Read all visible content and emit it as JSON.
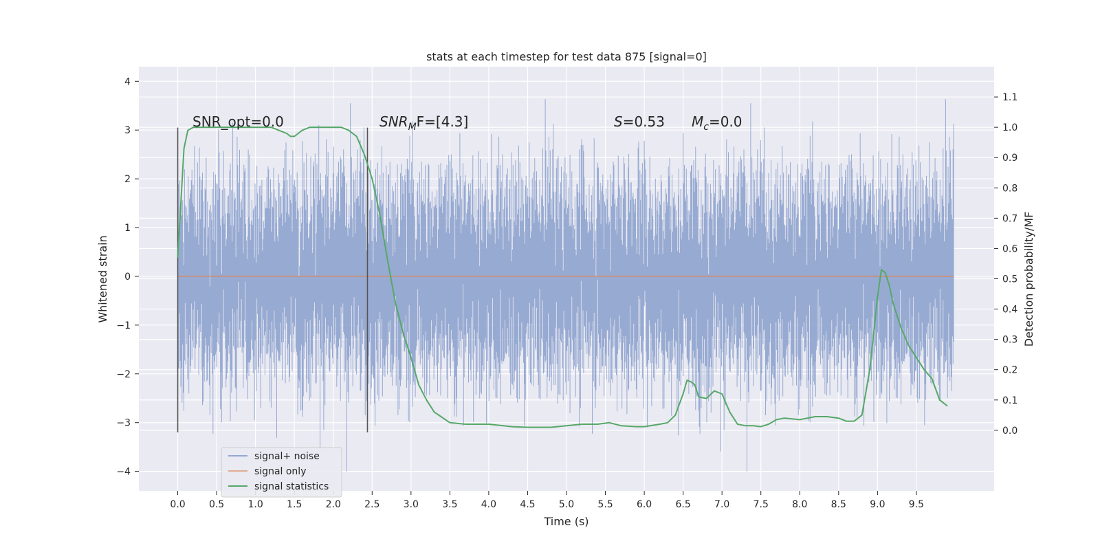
{
  "chart_data": {
    "type": "line",
    "title": "stats at each timestep for test data 875 [signal=0]",
    "xlabel": "Time (s)",
    "ylabel_left": "Whitened strain",
    "ylabel_right": "Detection probability/MF",
    "xlim": [
      -0.5,
      10.5
    ],
    "ylim_left": [
      -4.4,
      4.3
    ],
    "ylim_right": [
      -0.2,
      1.2
    ],
    "x_ticks": [
      "0.0",
      "0.5",
      "1.0",
      "1.5",
      "2.0",
      "2.5",
      "3.0",
      "3.5",
      "4.0",
      "4.5",
      "5.0",
      "5.5",
      "6.0",
      "6.5",
      "7.0",
      "7.5",
      "8.0",
      "8.5",
      "9.0",
      "9.5"
    ],
    "y_ticks_left": [
      "4",
      "3",
      "2",
      "1",
      "0",
      "−1",
      "−2",
      "−3",
      "−4"
    ],
    "y_ticks_right": [
      "1.1",
      "1.0",
      "0.9",
      "0.8",
      "0.7",
      "0.6",
      "0.5",
      "0.4",
      "0.3",
      "0.2",
      "0.1",
      "0.0"
    ],
    "grid": true,
    "legend_position": "lower-left",
    "annotations": {
      "snr_opt": "SNR_opt=0.0",
      "snr_mf_prefix": "SNR",
      "snr_mf_sub": "M",
      "snr_mf_suffix": "F=[4.3]",
      "s_var": "S",
      "s_val": "=0.53",
      "mc_var": "M",
      "mc_sub": "c",
      "mc_val": "=0.0"
    },
    "vertical_markers": [
      0.0,
      2.44
    ],
    "series": [
      {
        "name": "signal+ noise",
        "color": "#92a6d0",
        "description_range": [
          -4.0,
          3.9
        ],
        "x_range": [
          0.0,
          9.98
        ]
      },
      {
        "name": "signal only",
        "color": "#dd8452",
        "x": [
          0.0,
          9.98
        ],
        "y": [
          0.0,
          0.0
        ]
      },
      {
        "name": "signal statistics",
        "color": "#55a868",
        "x": [
          0.0,
          0.08,
          0.13,
          0.2,
          0.3,
          0.5,
          0.7,
          0.9,
          1.0,
          1.1,
          1.2,
          1.3,
          1.4,
          1.45,
          1.5,
          1.55,
          1.6,
          1.7,
          1.8,
          2.0,
          2.1,
          2.2,
          2.3,
          2.4,
          2.5,
          2.6,
          2.7,
          2.8,
          2.9,
          3.0,
          3.1,
          3.2,
          3.3,
          3.5,
          3.7,
          4.0,
          4.3,
          4.5,
          4.8,
          5.0,
          5.2,
          5.4,
          5.55,
          5.7,
          5.9,
          6.0,
          6.2,
          6.3,
          6.4,
          6.5,
          6.55,
          6.6,
          6.65,
          6.7,
          6.8,
          6.9,
          7.0,
          7.05,
          7.1,
          7.2,
          7.3,
          7.4,
          7.5,
          7.6,
          7.7,
          7.8,
          8.0,
          8.2,
          8.35,
          8.5,
          8.6,
          8.7,
          8.8,
          8.9,
          9.0,
          9.05,
          9.1,
          9.15,
          9.2,
          9.3,
          9.4,
          9.5,
          9.6,
          9.7,
          9.8,
          9.9
        ],
        "y": [
          0.57,
          0.93,
          0.99,
          1.0,
          1.0,
          1.0,
          1.0,
          1.0,
          1.0,
          1.0,
          1.0,
          0.99,
          0.98,
          0.97,
          0.97,
          0.98,
          0.99,
          1.0,
          1.0,
          1.0,
          1.0,
          0.99,
          0.97,
          0.91,
          0.83,
          0.71,
          0.56,
          0.42,
          0.32,
          0.24,
          0.15,
          0.1,
          0.06,
          0.025,
          0.02,
          0.02,
          0.012,
          0.01,
          0.01,
          0.015,
          0.02,
          0.02,
          0.025,
          0.015,
          0.012,
          0.012,
          0.02,
          0.025,
          0.05,
          0.12,
          0.165,
          0.16,
          0.15,
          0.11,
          0.105,
          0.13,
          0.12,
          0.09,
          0.06,
          0.02,
          0.015,
          0.015,
          0.012,
          0.02,
          0.035,
          0.04,
          0.035,
          0.045,
          0.045,
          0.04,
          0.03,
          0.03,
          0.05,
          0.2,
          0.44,
          0.53,
          0.52,
          0.48,
          0.42,
          0.34,
          0.28,
          0.24,
          0.2,
          0.17,
          0.1,
          0.08
        ]
      }
    ]
  }
}
